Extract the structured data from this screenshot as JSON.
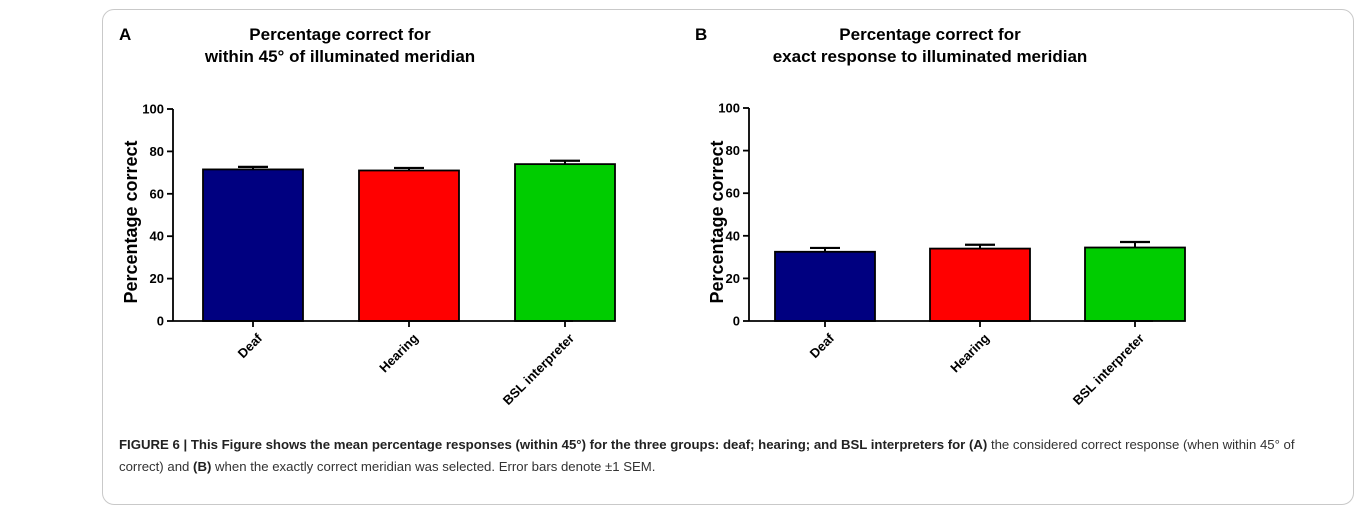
{
  "figure": {
    "caption": {
      "label": "FIGURE 6 | This Figure shows the mean percentage responses (within 45°) for the three groups: deaf; hearing; and BSL interpreters for",
      "ref_a": "(A)",
      "part_1": "the considered correct response (when within 45° of correct) and",
      "ref_b": "(B)",
      "part_2": "when the exactly correct meridian was selected. Error bars denote ±1 SEM."
    }
  },
  "chart_data": [
    {
      "panel": "A",
      "type": "bar",
      "title": [
        "Percentage correct for",
        "within 45° of illuminated meridian"
      ],
      "xlabel": "",
      "ylabel": "Percentage correct",
      "ylim": [
        0,
        100
      ],
      "yticks": [
        "0",
        "20",
        "40",
        "60",
        "80",
        "100"
      ],
      "categories": [
        "Deaf",
        "Hearing",
        "BSL interpreter"
      ],
      "values": [
        71.5,
        71,
        74
      ],
      "errors": [
        1.2,
        1.2,
        1.6
      ],
      "colors": [
        "#000080",
        "#ff0000",
        "#00cc00"
      ],
      "grid": false
    },
    {
      "panel": "B",
      "type": "bar",
      "title": [
        "Percentage correct for",
        "exact response to illuminated meridian"
      ],
      "xlabel": "",
      "ylabel": "Percentage correct",
      "ylim": [
        0,
        100
      ],
      "yticks": [
        "0",
        "20",
        "40",
        "60",
        "80",
        "100"
      ],
      "categories": [
        "Deaf",
        "Hearing",
        "BSL interpreter"
      ],
      "values": [
        32.5,
        34,
        34.5
      ],
      "errors": [
        1.8,
        1.8,
        2.6
      ],
      "colors": [
        "#000080",
        "#ff0000",
        "#00cc00"
      ],
      "grid": false
    }
  ]
}
